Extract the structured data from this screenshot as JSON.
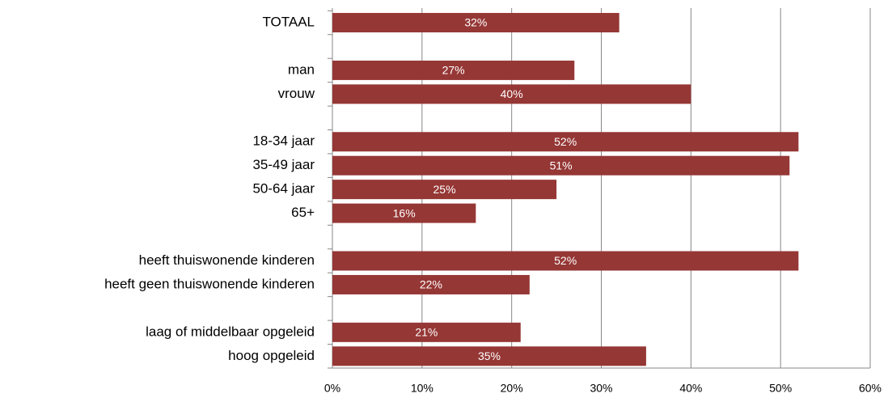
{
  "chart_data": {
    "type": "hbar",
    "categories": [
      "TOTAAL",
      null,
      "man",
      "vrouw",
      null,
      "18-34 jaar",
      "35-49 jaar",
      "50-64 jaar",
      "65+",
      null,
      "heeft thuiswonende kinderen",
      "heeft geen thuiswonende kinderen",
      null,
      "laag of middelbaar opgeleid",
      "hoog opgeleid"
    ],
    "values": [
      32,
      null,
      27,
      40,
      null,
      52,
      51,
      25,
      16,
      null,
      52,
      22,
      null,
      21,
      35
    ],
    "value_labels": [
      "32%",
      null,
      "27%",
      "40%",
      null,
      "52%",
      "51%",
      "25%",
      "16%",
      null,
      "52%",
      "22%",
      null,
      "21%",
      "35%"
    ],
    "color": "#953735",
    "xlim": [
      0,
      60
    ],
    "xticks": [
      {
        "value": 0,
        "label": "0%"
      },
      {
        "value": 10,
        "label": "10%"
      },
      {
        "value": 20,
        "label": "20%"
      },
      {
        "value": 30,
        "label": "30%"
      },
      {
        "value": 40,
        "label": "40%"
      },
      {
        "value": 50,
        "label": "50%"
      },
      {
        "value": 60,
        "label": "60%"
      }
    ],
    "grid": true
  }
}
